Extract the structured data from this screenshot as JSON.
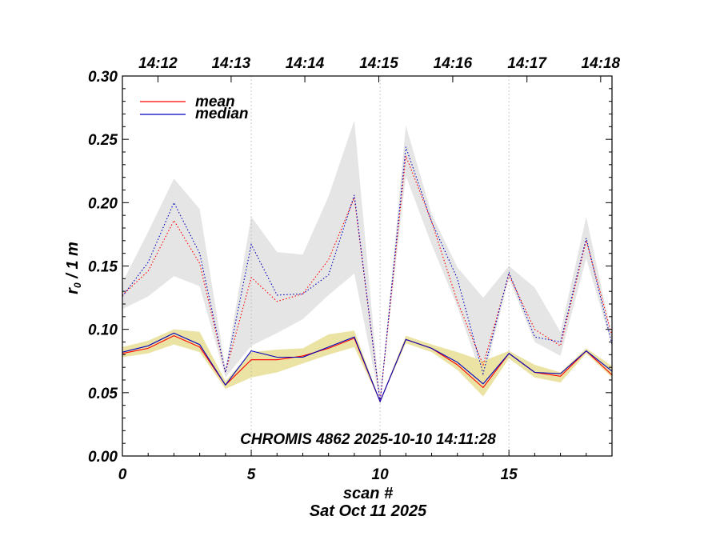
{
  "chart_data": {
    "type": "line",
    "annotation": "CHROMIS 4862 2025-10-10 14:11:28",
    "xlabel": "scan #",
    "xlabel2": "Sat Oct 11 2025",
    "ylabel_main": "r",
    "ylabel_sub": "0",
    "ylabel_tail": " / 1 m",
    "xlim": [
      0,
      19
    ],
    "ylim": [
      0.0,
      0.3
    ],
    "x_ticks": [
      0,
      5,
      10,
      15
    ],
    "x_tick_labels": [
      "0",
      "5",
      "10",
      "15"
    ],
    "y_ticks": [
      0.0,
      0.05,
      0.1,
      0.15,
      0.2,
      0.25,
      0.3
    ],
    "y_tick_labels": [
      "0.00",
      "0.05",
      "0.10",
      "0.15",
      "0.20",
      "0.25",
      "0.30"
    ],
    "top_axis": {
      "labels": [
        "14:12",
        "14:13",
        "14:14",
        "14:15",
        "14:16",
        "14:17",
        "14:18"
      ],
      "positions": [
        1.38,
        4.22,
        7.08,
        9.95,
        12.82,
        15.7,
        18.56
      ]
    },
    "vlines": [
      5,
      10,
      15
    ],
    "legend": [
      {
        "name": "mean",
        "color": "#ff0000"
      },
      {
        "name": "median",
        "color": "#0000bb"
      }
    ],
    "legend_position": "top-left",
    "x": [
      0,
      1,
      2,
      3,
      4,
      5,
      6,
      7,
      8,
      9,
      10,
      11,
      12,
      13,
      14,
      15,
      16,
      17,
      18,
      19
    ],
    "series": [
      {
        "name": "mean (lower)",
        "color": "#ff0000",
        "style": "solid",
        "values": [
          0.081,
          0.085,
          0.095,
          0.086,
          0.056,
          0.076,
          0.076,
          0.079,
          0.085,
          0.093,
          0.043,
          0.092,
          0.085,
          0.072,
          0.054,
          0.081,
          0.066,
          0.063,
          0.083,
          0.064
        ]
      },
      {
        "name": "median (lower)",
        "color": "#0000bb",
        "style": "solid",
        "values": [
          0.082,
          0.087,
          0.097,
          0.088,
          0.056,
          0.083,
          0.078,
          0.078,
          0.086,
          0.094,
          0.043,
          0.092,
          0.085,
          0.074,
          0.057,
          0.081,
          0.066,
          0.065,
          0.083,
          0.067
        ]
      },
      {
        "name": "mean (upper)",
        "color": "#ff0000",
        "style": "dotted",
        "values": [
          0.127,
          0.146,
          0.186,
          0.152,
          0.066,
          0.141,
          0.122,
          0.128,
          0.155,
          0.204,
          0.043,
          0.237,
          0.185,
          0.122,
          0.072,
          0.143,
          0.1,
          0.087,
          0.17,
          0.095
        ]
      },
      {
        "name": "median (upper)",
        "color": "#0000bb",
        "style": "dotted",
        "values": [
          0.126,
          0.153,
          0.2,
          0.16,
          0.066,
          0.167,
          0.127,
          0.128,
          0.143,
          0.206,
          0.043,
          0.244,
          0.185,
          0.14,
          0.065,
          0.145,
          0.094,
          0.09,
          0.172,
          0.088
        ]
      }
    ],
    "bands": [
      {
        "name": "upper spread",
        "color": "#e5e5e5",
        "upper": [
          0.137,
          0.177,
          0.219,
          0.195,
          0.069,
          0.189,
          0.161,
          0.159,
          0.205,
          0.265,
          0.043,
          0.261,
          0.191,
          0.149,
          0.125,
          0.15,
          0.133,
          0.098,
          0.189,
          0.094
        ],
        "lower": [
          0.116,
          0.126,
          0.142,
          0.134,
          0.062,
          0.087,
          0.097,
          0.108,
          0.127,
          0.144,
          0.043,
          0.221,
          0.167,
          0.118,
          0.06,
          0.14,
          0.09,
          0.079,
          0.156,
          0.087
        ]
      },
      {
        "name": "lower spread",
        "color": "#ebe3a4",
        "upper": [
          0.086,
          0.091,
          0.1,
          0.098,
          0.059,
          0.082,
          0.084,
          0.085,
          0.096,
          0.099,
          0.043,
          0.095,
          0.088,
          0.082,
          0.075,
          0.083,
          0.072,
          0.066,
          0.085,
          0.071
        ],
        "lower": [
          0.078,
          0.081,
          0.088,
          0.082,
          0.053,
          0.062,
          0.066,
          0.073,
          0.08,
          0.086,
          0.043,
          0.089,
          0.082,
          0.068,
          0.047,
          0.077,
          0.062,
          0.058,
          0.081,
          0.062
        ]
      }
    ]
  }
}
